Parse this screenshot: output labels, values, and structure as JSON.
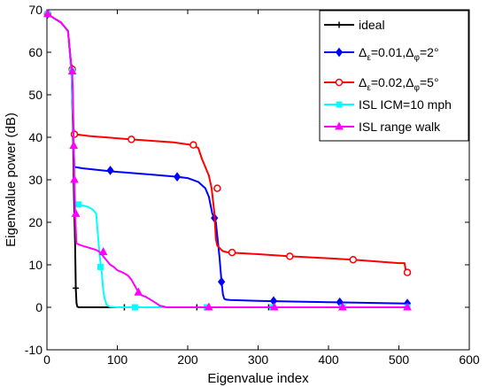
{
  "chart_data": {
    "type": "line",
    "xlabel": "Eigenvalue index",
    "ylabel": "Eigenvalue power (dB)",
    "xlim": [
      0,
      600
    ],
    "ylim": [
      -10,
      70
    ],
    "xticks": [
      "0",
      "100",
      "200",
      "300",
      "400",
      "500",
      "600"
    ],
    "yticks": [
      "-10",
      "0",
      "10",
      "20",
      "30",
      "40",
      "50",
      "60",
      "70"
    ],
    "grid": false,
    "legend_position": "top-right",
    "series": [
      {
        "name": "ideal",
        "color": "#000000",
        "marker": "plus",
        "x": [
          1,
          10,
          20,
          30,
          35,
          37,
          38,
          39,
          40,
          41,
          42,
          43,
          45,
          50,
          100,
          200,
          300,
          400,
          512
        ],
        "y": [
          69,
          68,
          67,
          65,
          55,
          42,
          30,
          22,
          15,
          4.5,
          1,
          0.2,
          0,
          0,
          0,
          0,
          0,
          0,
          0
        ],
        "marker_x": [
          1,
          36,
          41,
          110,
          213,
          315,
          418,
          512
        ],
        "marker_y": [
          69,
          55.5,
          4.5,
          0,
          0,
          0,
          0,
          0
        ]
      },
      {
        "name": "Δε=0.01,Δφ=2°",
        "legend": {
          "a": "Δ",
          "a_sub": "ε",
          "b": "=0.01,",
          "c": "Δ",
          "c_sub": "φ",
          "d": "=2°"
        },
        "color": "#0000ff",
        "marker": "diamond",
        "x": [
          1,
          10,
          20,
          30,
          35,
          37,
          38,
          39,
          40,
          50,
          90,
          150,
          185,
          200,
          215,
          225,
          230,
          235,
          238,
          240,
          245,
          248,
          250,
          252,
          255,
          260,
          300,
          400,
          512
        ],
        "y": [
          69,
          68,
          67,
          65,
          56,
          45,
          38,
          33,
          33,
          32.7,
          32,
          31.2,
          30.7,
          30.4,
          29.5,
          28,
          26,
          22,
          21,
          20,
          12,
          6,
          3,
          2,
          1.8,
          1.7,
          1.5,
          1.2,
          0.9
        ],
        "marker_x": [
          1,
          36,
          90,
          185,
          238,
          248,
          322,
          416,
          512
        ],
        "marker_y": [
          69,
          56,
          32.2,
          30.7,
          21,
          6,
          1.5,
          1.2,
          0.9
        ]
      },
      {
        "name": "Δε=0.02,Δφ=5°",
        "legend": {
          "a": "Δ",
          "a_sub": "ε",
          "b": "=0.02,",
          "c": "Δ",
          "c_sub": "φ",
          "d": "=5°"
        },
        "color": "#ff0000",
        "marker": "circle",
        "x": [
          1,
          10,
          20,
          30,
          35,
          37,
          38,
          39,
          40,
          60,
          120,
          180,
          205,
          215,
          220,
          225,
          230,
          234,
          236,
          238,
          240,
          242,
          245,
          248,
          250,
          255,
          258,
          300,
          345,
          435,
          500,
          508,
          510,
          512
        ],
        "y": [
          69,
          68,
          67,
          65,
          56,
          45,
          42,
          41,
          40.7,
          40.3,
          39.5,
          38.8,
          38.2,
          37.5,
          35,
          33,
          31,
          28,
          25,
          22,
          16,
          14.5,
          14,
          13.5,
          13.2,
          13,
          12.9,
          12.5,
          12,
          11.2,
          10.4,
          10.4,
          8.5,
          8.2
        ],
        "marker_x": [
          1,
          36,
          39,
          120,
          208,
          242,
          263,
          345,
          435,
          512
        ],
        "marker_y": [
          69,
          56,
          40.7,
          39.5,
          38.2,
          28,
          12.9,
          12,
          11.2,
          8.2
        ]
      },
      {
        "name": "ISL ICM=10 mph",
        "color": "#00ffff",
        "marker": "square",
        "x": [
          1,
          10,
          20,
          30,
          35,
          37,
          38,
          39,
          40,
          42,
          45,
          50,
          55,
          60,
          65,
          70,
          72,
          75,
          78,
          80,
          82,
          85,
          90,
          100,
          125,
          200,
          300,
          400,
          512
        ],
        "y": [
          69,
          68,
          67,
          65,
          55,
          45,
          38,
          30,
          25,
          24.5,
          24.2,
          24,
          23.8,
          23.5,
          23,
          22,
          18,
          12,
          8,
          4,
          2,
          0.5,
          0.1,
          0,
          0,
          0,
          0,
          0,
          0
        ],
        "marker_x": [
          1,
          36,
          45,
          76,
          125,
          227,
          320,
          420,
          512
        ],
        "marker_y": [
          69,
          55.5,
          24.2,
          9.5,
          0,
          0,
          0,
          0,
          0
        ]
      },
      {
        "name": "ISL range walk",
        "color": "#ff00ff",
        "marker": "triangle",
        "x": [
          1,
          10,
          20,
          30,
          35,
          36,
          37,
          38,
          39,
          40,
          42,
          45,
          50,
          60,
          70,
          75,
          80,
          85,
          90,
          95,
          100,
          105,
          110,
          115,
          120,
          125,
          130,
          133,
          135,
          140,
          145,
          150,
          155,
          160,
          165,
          170,
          180,
          200,
          300,
          400,
          512
        ],
        "y": [
          69,
          68,
          67,
          65,
          56,
          55,
          50,
          38,
          30,
          22,
          15,
          14.8,
          14.5,
          14,
          13.5,
          13,
          12,
          11,
          10,
          9.5,
          8.7,
          8.4,
          8,
          7.5,
          6.5,
          5,
          3.5,
          3,
          2.8,
          2.5,
          2,
          1.5,
          1,
          0.4,
          0.2,
          0,
          0,
          0,
          0,
          0,
          0
        ],
        "marker_x": [
          1,
          36,
          38,
          39,
          41,
          80,
          130,
          230,
          323,
          420,
          512
        ],
        "marker_y": [
          69,
          55.5,
          38,
          30,
          22,
          13,
          3.5,
          0,
          0,
          0,
          0
        ]
      }
    ]
  }
}
